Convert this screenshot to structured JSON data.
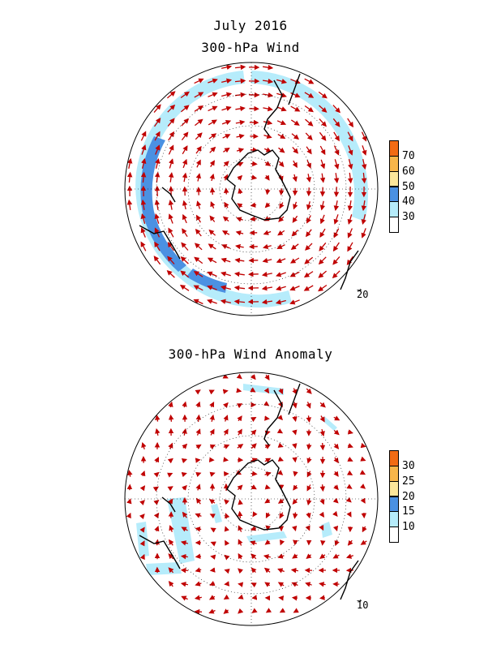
{
  "header": {
    "title": "July 2016",
    "top_panel_title": "300-hPa Wind",
    "bottom_panel_title": "300-hPa Wind Anomaly"
  },
  "top_panel": {
    "colorbar": {
      "labels": [
        "70",
        "60",
        "50",
        "40",
        "30"
      ],
      "colors": [
        "#f26b13",
        "#f8b64a",
        "#fde79b",
        "#4b91e2",
        "#b6ecfb",
        "#ffffff"
      ]
    },
    "reference_vector": "20"
  },
  "bottom_panel": {
    "colorbar": {
      "labels": [
        "30",
        "25",
        "20",
        "15",
        "10"
      ],
      "colors": [
        "#f26b13",
        "#f8b64a",
        "#fde79b",
        "#4b91e2",
        "#b6ecfb",
        "#ffffff"
      ]
    },
    "reference_vector": "10"
  },
  "colors": {
    "vector": "#c00000",
    "shade_light": "#b6ecfb",
    "shade_dark": "#4b91e2",
    "coast": "#000000"
  }
}
